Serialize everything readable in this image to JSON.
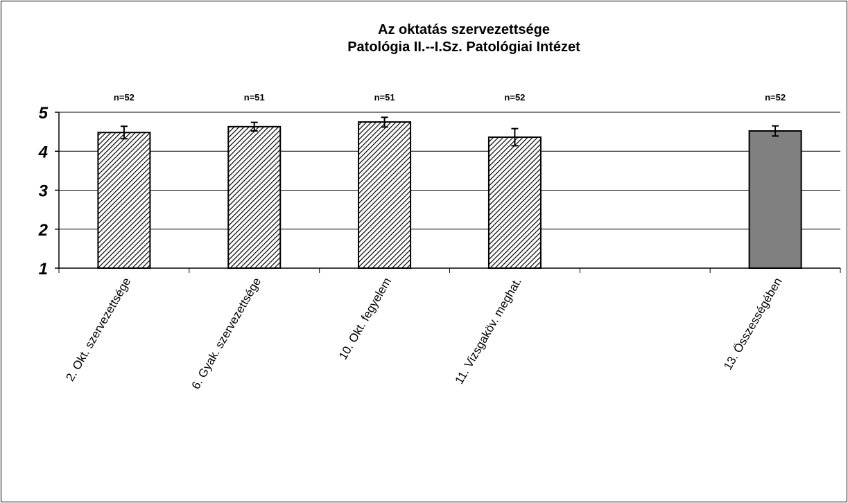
{
  "chart_data": {
    "type": "bar",
    "title_lines": [
      "Az oktatás szervezettsége",
      "Patológia II.--I.Sz. Patológiai Intézet"
    ],
    "categories": [
      "2. Okt. szervezettsége",
      "6. Gyak. szervezettsége",
      "10. Okt. fegyelem",
      "11. Vizsgaköv. meghat.",
      "",
      "13. Összességében"
    ],
    "values": [
      4.48,
      4.63,
      4.75,
      4.36,
      null,
      4.52
    ],
    "error_low": [
      4.32,
      4.52,
      4.62,
      4.14,
      null,
      4.39
    ],
    "error_high": [
      4.64,
      4.74,
      4.87,
      4.58,
      null,
      4.65
    ],
    "n_labels": [
      "n=52",
      "n=51",
      "n=51",
      "n=52",
      "",
      "n=52"
    ],
    "ylim": [
      1,
      5
    ],
    "yticks": [
      "1",
      "2",
      "3",
      "4",
      "5"
    ],
    "grid": true,
    "bar_fills": [
      "hatched",
      "hatched",
      "hatched",
      "hatched",
      "",
      "solid"
    ],
    "colors": {
      "bar_solid": "#808080",
      "hatch": "#000000",
      "grid": "#000000"
    }
  }
}
